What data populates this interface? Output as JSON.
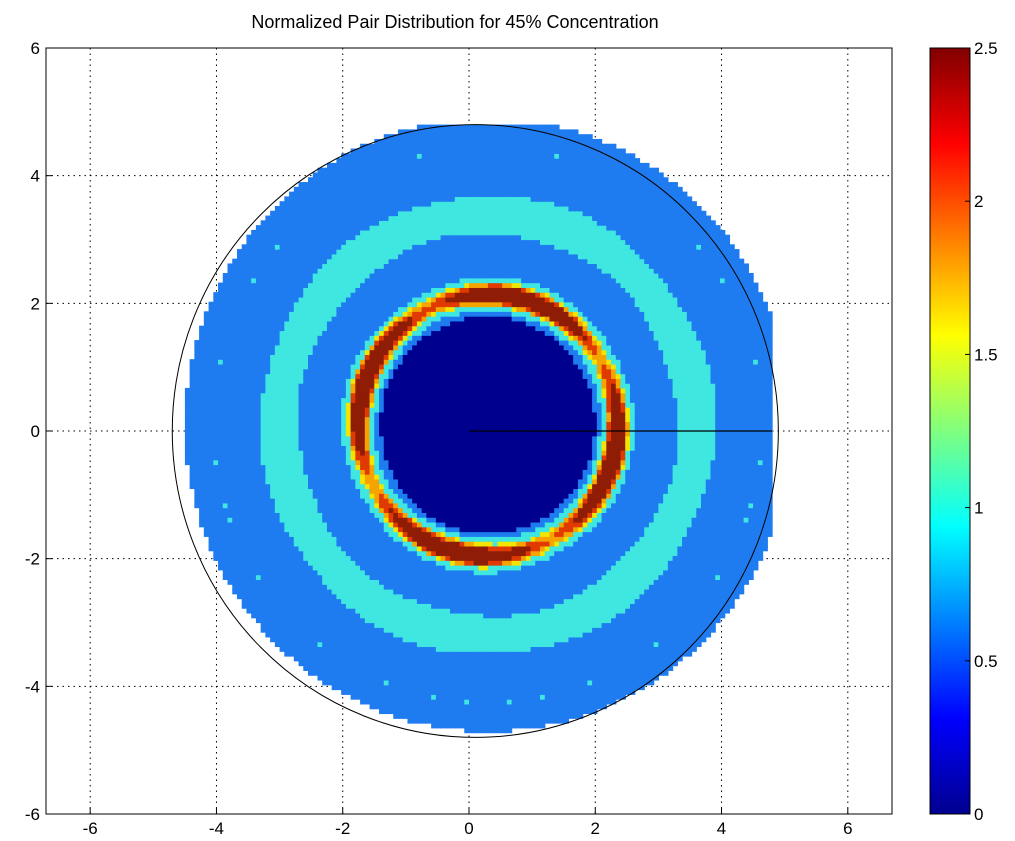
{
  "chart_data": {
    "type": "heatmap",
    "subtype": "filled-contour",
    "title": "Normalized Pair Distribution for 45% Concentration",
    "xlabel": "",
    "ylabel": "",
    "xlim": [
      -6.7,
      6.7
    ],
    "ylim": [
      -6,
      6
    ],
    "xticks": [
      -6,
      -4,
      -2,
      0,
      2,
      4,
      6
    ],
    "yticks": [
      -6,
      -4,
      -2,
      0,
      2,
      4,
      6
    ],
    "xtick_labels": [
      "-6",
      "-4",
      "-2",
      "0",
      "2",
      "4",
      "6"
    ],
    "ytick_labels": [
      "-6",
      "-4",
      "-2",
      "0",
      "2",
      "4",
      "6"
    ],
    "grid": "dotted",
    "colormap": "jet",
    "colorbar": {
      "limits": [
        0,
        2.5
      ],
      "ticks": [
        0,
        0.5,
        1,
        1.5,
        2,
        2.5
      ],
      "tick_labels": [
        "0",
        "0.5",
        "1",
        "1.5",
        "2",
        "2.5"
      ],
      "position": "right"
    },
    "contour_levels": [
      0,
      0.5,
      1,
      1.5,
      2,
      2.5
    ],
    "regions": [
      {
        "name": "excluded-core",
        "value_range": [
          0,
          0.5
        ],
        "r_outer": 1.7,
        "center": [
          0.3,
          0.1
        ],
        "color": "#00008f"
      },
      {
        "name": "first-shell",
        "value_range": [
          1.5,
          2.5
        ],
        "r_inner": 1.9,
        "r_outer": 2.2,
        "peak_angles_deg": [
          75,
          160,
          255,
          345
        ],
        "peak_value": 2.4
      },
      {
        "name": "second-shell",
        "value_range": [
          0.5,
          1.5
        ],
        "r_inner": 2.6,
        "r_outer": 4.0,
        "color": "#3fe7e0"
      },
      {
        "name": "outer-background",
        "value_range": [
          0.5,
          1.0
        ],
        "r_outer": 4.8,
        "color": "#1e7cf0"
      }
    ],
    "annotations": [
      {
        "type": "line",
        "from": [
          0,
          0
        ],
        "to": [
          4.8,
          0
        ]
      }
    ],
    "data_extent_radius": 4.8
  }
}
